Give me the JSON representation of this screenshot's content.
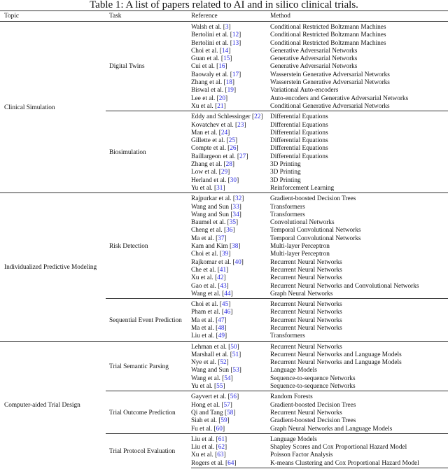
{
  "title": "Table 1: A list of papers related to AI and in silico clinical trials.",
  "headers": {
    "topic": "Topic",
    "task": "Task",
    "reference": "Reference",
    "method": "Method"
  },
  "link_color": "#2a2ae0",
  "sections": [
    {
      "topic": "Clinical Simulation",
      "tasks": [
        {
          "task": "Digital Twins",
          "rows": [
            {
              "author": "Walsh et al.",
              "ref": "3",
              "method": "Conditional Restricted Boltzmann Machines"
            },
            {
              "author": "Bertolini et al.",
              "ref": "12",
              "method": "Conditional Restricted Boltzmann Machines"
            },
            {
              "author": "Bertolini et al.",
              "ref": "13",
              "method": "Conditional Restricted Boltzmann Machines"
            },
            {
              "author": "Choi et al.",
              "ref": "14",
              "method": "Generative Adversarial Networks"
            },
            {
              "author": "Guan et al.",
              "ref": "15",
              "method": "Generative Adversarial Networks"
            },
            {
              "author": "Cui et al.",
              "ref": "16",
              "method": "Generative Adversarial Networks"
            },
            {
              "author": "Baowaly et al.",
              "ref": "17",
              "method": "Wasserstein Generative Adversarial Networks"
            },
            {
              "author": "Zhang et al.",
              "ref": "18",
              "method": "Wasserstein Generative Adversarial Networks"
            },
            {
              "author": "Biswal et al.",
              "ref": "19",
              "method": "Variational Auto-encoders"
            },
            {
              "author": "Lee et al.",
              "ref": "20",
              "method": "Auto-encoders and Generative Adversarial Networks"
            },
            {
              "author": "Xu et al.",
              "ref": "21",
              "method": "Conditional Generative Adversarial Networks"
            }
          ]
        },
        {
          "task": "Biosimulation",
          "rows": [
            {
              "author": "Eddy and Schlessinger",
              "ref": "22",
              "method": "Differential Equations"
            },
            {
              "author": "Kovatchev et al.",
              "ref": "23",
              "method": "Differential Equations"
            },
            {
              "author": "Man et al.",
              "ref": "24",
              "method": "Differential Equations"
            },
            {
              "author": "Gillette et al.",
              "ref": "25",
              "method": "Differential Equations"
            },
            {
              "author": "Compte et al.",
              "ref": "26",
              "method": "Differential Equations"
            },
            {
              "author": "Baillargeon et al.",
              "ref": "27",
              "method": "Differential Equations"
            },
            {
              "author": "Zhang et al.",
              "ref": "28",
              "method": "3D Printing"
            },
            {
              "author": "Low et al.",
              "ref": "29",
              "method": "3D Printing"
            },
            {
              "author": "Herland et al.",
              "ref": "30",
              "method": "3D Printing"
            },
            {
              "author": "Yu et al.",
              "ref": "31",
              "method": "Reinforcement Learning"
            }
          ]
        }
      ]
    },
    {
      "topic": "Individualized Predictive Modeling",
      "tasks": [
        {
          "task": "Risk Detection",
          "rows": [
            {
              "author": "Rajpurkar et al.",
              "ref": "32",
              "method": "Gradient-boosted Decision Trees"
            },
            {
              "author": "Wang and Sun",
              "ref": "33",
              "method": "Transformers"
            },
            {
              "author": "Wang and Sun",
              "ref": "34",
              "method": "Transformers"
            },
            {
              "author": "Baumel et al.",
              "ref": "35",
              "method": "Convolutional Networks"
            },
            {
              "author": "Cheng et al.",
              "ref": "36",
              "method": "Temporal Convolutional Networks"
            },
            {
              "author": "Ma et al.",
              "ref": "37",
              "method": "Temporal Convolutional Networks"
            },
            {
              "author": "Kam and Kim",
              "ref": "38",
              "method": "Multi-layer Perceptron"
            },
            {
              "author": "Choi et al.",
              "ref": "39",
              "method": "Multi-layer Perceptron"
            },
            {
              "author": "Rajkomar et al.",
              "ref": "40",
              "method": "Recurrent Neural Networks"
            },
            {
              "author": "Che et al.",
              "ref": "41",
              "method": "Recurrent Neural Networks"
            },
            {
              "author": "Xu et al.",
              "ref": "42",
              "method": "Recurrent Neural Networks"
            },
            {
              "author": "Gao et al.",
              "ref": "43",
              "method": "Recurrent Neural Networks and Convolutional Networks"
            },
            {
              "author": "Wang et al.",
              "ref": "44",
              "method": "Graph Neural Networks"
            }
          ]
        },
        {
          "task": "Sequential Event Prediction",
          "rows": [
            {
              "author": "Choi et al.",
              "ref": "45",
              "method": "Recurrent Neural Networks"
            },
            {
              "author": "Pham et al.",
              "ref": "46",
              "method": "Recurrent Neural Networks"
            },
            {
              "author": "Ma et al.",
              "ref": "47",
              "method": "Recurrent Neural Networks"
            },
            {
              "author": "Ma et al.",
              "ref": "48",
              "method": "Recurrent Neural Networks"
            },
            {
              "author": "Liu et al.",
              "ref": "49",
              "method": "Transformers"
            }
          ]
        }
      ]
    },
    {
      "topic": "Computer-aided Trial Design",
      "tasks": [
        {
          "task": "Trial Semantic Parsing",
          "rows": [
            {
              "author": "Lehman et al.",
              "ref": "50",
              "method": "Recurrent Neural Networks"
            },
            {
              "author": "Marshall et al.",
              "ref": "51",
              "method": "Recurrent Neural Networks and Language Models"
            },
            {
              "author": "Nye et al.",
              "ref": "52",
              "method": "Recurrent Neural Networks and Language Models"
            },
            {
              "author": "Wang and Sun",
              "ref": "53",
              "method": "Language Models"
            },
            {
              "author": "Wang et al.",
              "ref": "54",
              "method": "Sequence-to-sequence Networks"
            },
            {
              "author": "Yu et al.",
              "ref": "55",
              "method": "Sequence-to-sequence Networks"
            }
          ]
        },
        {
          "task": "Trial Outcome Prediction",
          "rows": [
            {
              "author": "Gayvert et al.",
              "ref": "56",
              "method": "Random Forests"
            },
            {
              "author": "Hong et al.",
              "ref": "57",
              "method": "Gradient-boosted Decision Trees"
            },
            {
              "author": "Qi and Tang",
              "ref": "58",
              "method": "Recurrent Neural Networks"
            },
            {
              "author": "Siah et al.",
              "ref": "59",
              "method": "Gradient-boosted Decision Trees"
            },
            {
              "author": "Fu et al.",
              "ref": "60",
              "method": "Graph Neural Networks and Language Models"
            }
          ]
        },
        {
          "task": "Trial Protocol Evaluation",
          "rows": [
            {
              "author": "Liu et al.",
              "ref": "61",
              "method": "Language Models"
            },
            {
              "author": "Liu et al.",
              "ref": "62",
              "method": "Shapley Scores and Cox Proportional Hazard Model"
            },
            {
              "author": "Xu et al.",
              "ref": "63",
              "method": "Poisson Factor Analysis"
            },
            {
              "author": "Rogers et al.",
              "ref": "64",
              "method": "K-means Clustering and Cox Proportional Hazard Model"
            }
          ]
        }
      ]
    }
  ]
}
